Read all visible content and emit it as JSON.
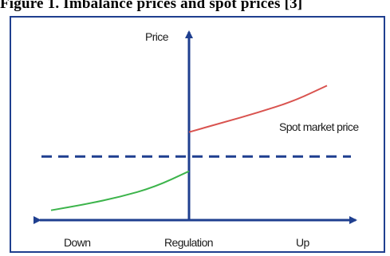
{
  "figure": {
    "caption": "Figure 1. Imbalance prices and spot prices [3]"
  },
  "colors": {
    "axis": "#1f3f8f",
    "spot_line": "#1f3f8f",
    "up_curve": "#d9534f",
    "down_curve": "#3cb44b",
    "frame": "#1f3f8f"
  },
  "chart_data": {
    "type": "line",
    "title": "",
    "ylabel": "Price",
    "xlabel": "Regulation",
    "x_end_labels": {
      "left": "Down",
      "right": "Up"
    },
    "spot_label": "Spot market price",
    "spot_price": 0,
    "xlim": [
      -1,
      1
    ],
    "ylim": [
      -2.6,
      5.1
    ],
    "series": [
      {
        "name": "",
        "color": "#3cb44b",
        "x": [
          -1.0,
          -0.75,
          -0.5,
          -0.25,
          0.0
        ],
        "y": [
          -2.2,
          -1.95,
          -1.65,
          -1.25,
          -0.6
        ]
      },
      {
        "name": "",
        "color": "#d9534f",
        "x": [
          0.0,
          0.25,
          0.5,
          0.75,
          1.0
        ],
        "y": [
          1.0,
          1.4,
          1.8,
          2.25,
          2.9
        ]
      }
    ]
  }
}
